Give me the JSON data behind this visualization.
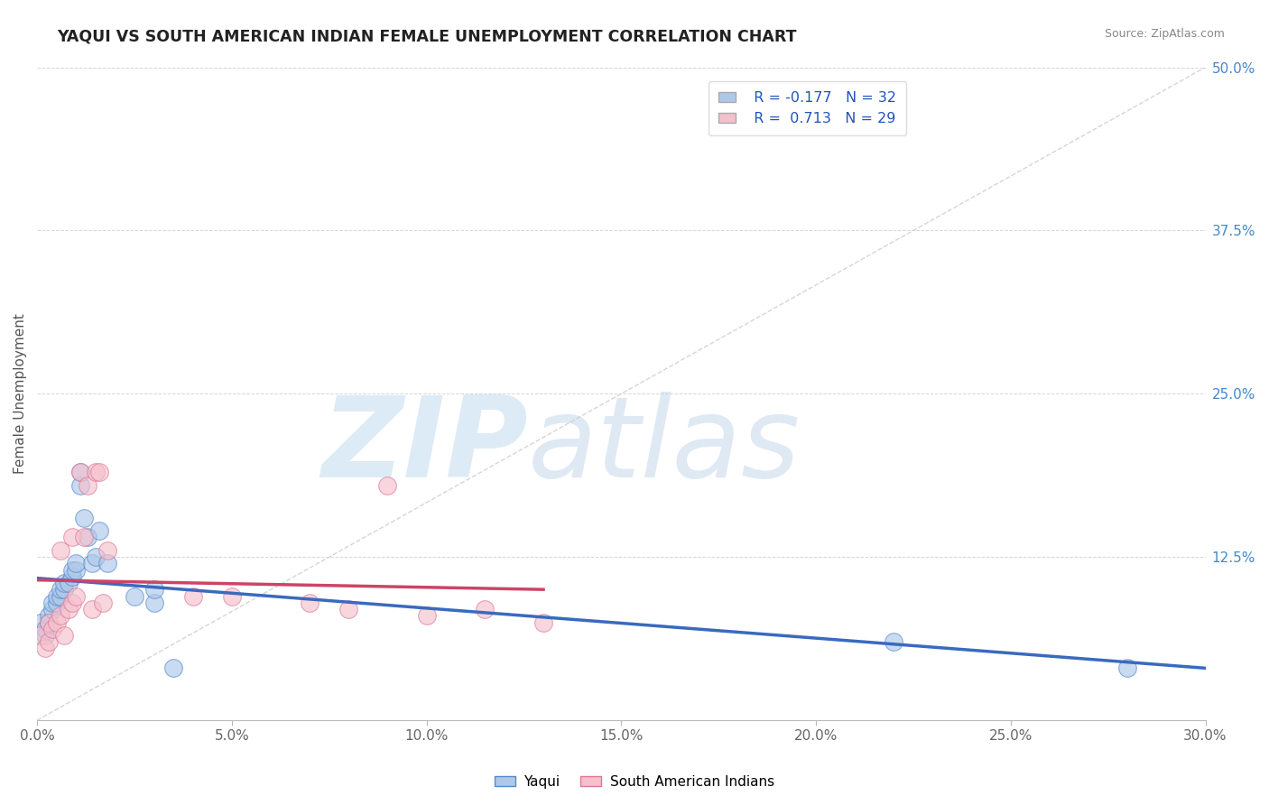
{
  "title": "YAQUI VS SOUTH AMERICAN INDIAN FEMALE UNEMPLOYMENT CORRELATION CHART",
  "source": "Source: ZipAtlas.com",
  "ylabel": "Female Unemployment",
  "xlim": [
    0.0,
    0.3
  ],
  "ylim": [
    0.0,
    0.5
  ],
  "xtick_labels": [
    "0.0%",
    "5.0%",
    "10.0%",
    "15.0%",
    "20.0%",
    "25.0%",
    "30.0%"
  ],
  "xtick_vals": [
    0.0,
    0.05,
    0.1,
    0.15,
    0.2,
    0.25,
    0.3
  ],
  "ytick_labels": [
    "12.5%",
    "25.0%",
    "37.5%",
    "50.0%"
  ],
  "ytick_vals": [
    0.125,
    0.25,
    0.375,
    0.5
  ],
  "grid_color": "#cccccc",
  "background_color": "#ffffff",
  "watermark_zip": "ZIP",
  "watermark_atlas": "atlas",
  "legend_r1": "R = -0.177",
  "legend_n1": "N = 32",
  "legend_r2": "R =  0.713",
  "legend_n2": "N = 29",
  "series1_color": "#adc8e8",
  "series1_edge_color": "#5588cc",
  "series1_line_color": "#3a6abf",
  "series2_color": "#f5c0cc",
  "series2_edge_color": "#dd7799",
  "series2_line_color": "#cc4466",
  "yaqui_x": [
    0.001,
    0.002,
    0.002,
    0.003,
    0.003,
    0.004,
    0.004,
    0.005,
    0.005,
    0.006,
    0.006,
    0.007,
    0.007,
    0.008,
    0.009,
    0.009,
    0.01,
    0.01,
    0.011,
    0.011,
    0.012,
    0.013,
    0.014,
    0.015,
    0.016,
    0.018,
    0.025,
    0.03,
    0.03,
    0.035,
    0.22,
    0.28
  ],
  "yaqui_y": [
    0.075,
    0.065,
    0.07,
    0.08,
    0.075,
    0.085,
    0.09,
    0.09,
    0.095,
    0.095,
    0.1,
    0.1,
    0.105,
    0.105,
    0.11,
    0.115,
    0.115,
    0.12,
    0.18,
    0.19,
    0.155,
    0.14,
    0.12,
    0.125,
    0.145,
    0.12,
    0.095,
    0.09,
    0.1,
    0.04,
    0.06,
    0.04
  ],
  "sa_x": [
    0.001,
    0.002,
    0.003,
    0.003,
    0.004,
    0.005,
    0.006,
    0.006,
    0.007,
    0.008,
    0.009,
    0.009,
    0.01,
    0.011,
    0.012,
    0.013,
    0.014,
    0.015,
    0.016,
    0.017,
    0.018,
    0.04,
    0.05,
    0.07,
    0.08,
    0.09,
    0.1,
    0.115,
    0.13
  ],
  "sa_y": [
    0.065,
    0.055,
    0.06,
    0.075,
    0.07,
    0.075,
    0.08,
    0.13,
    0.065,
    0.085,
    0.09,
    0.14,
    0.095,
    0.19,
    0.14,
    0.18,
    0.085,
    0.19,
    0.19,
    0.09,
    0.13,
    0.095,
    0.095,
    0.09,
    0.085,
    0.18,
    0.08,
    0.085,
    0.075
  ]
}
